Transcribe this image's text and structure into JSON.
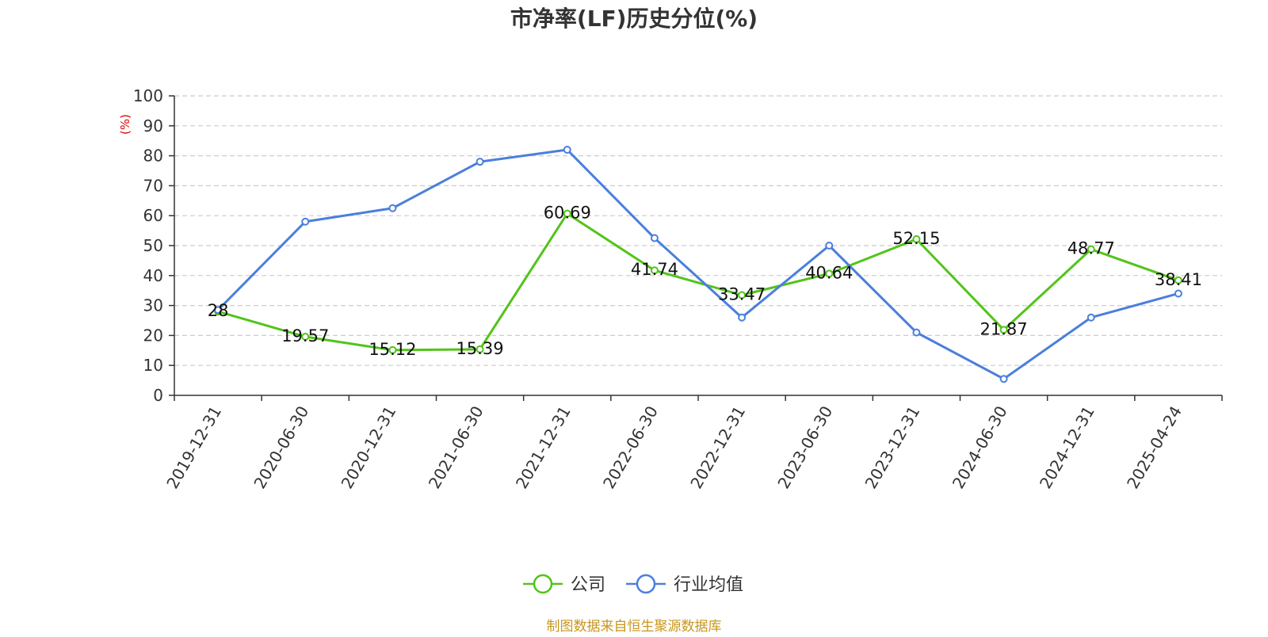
{
  "colors": {
    "company": "#52c41a",
    "industry": "#4a7fdc",
    "axis": "#333333",
    "grid": "#cccccc",
    "unit": "#e00000",
    "source": "#c8961e"
  },
  "chart_data": {
    "type": "line",
    "title": "市净率(LF)历史分位(%)",
    "ylabel": "(%)",
    "xlabel": "",
    "ylim": [
      0,
      100
    ],
    "yticks": [
      0,
      10,
      20,
      30,
      40,
      50,
      60,
      70,
      80,
      90,
      100
    ],
    "grid": true,
    "legend_position": "bottom-center",
    "categories": [
      "2019-12-31",
      "2020-06-30",
      "2020-12-31",
      "2021-06-30",
      "2021-12-31",
      "2022-06-30",
      "2022-12-31",
      "2023-06-30",
      "2023-12-31",
      "2024-06-30",
      "2024-12-31",
      "2025-04-24"
    ],
    "series": [
      {
        "name": "公司",
        "values": [
          28,
          19.57,
          15.12,
          15.39,
          60.69,
          41.74,
          33.47,
          40.64,
          52.15,
          21.87,
          48.77,
          38.41
        ],
        "data_labels": [
          "28",
          "19.57",
          "15.12",
          "15.39",
          "60.69",
          "41.74",
          "33.47",
          "40.64",
          "52.15",
          "21.87",
          "48.77",
          "38.41"
        ]
      },
      {
        "name": "行业均值",
        "values": [
          28.5,
          58,
          62.5,
          78,
          82,
          52.5,
          26,
          50,
          21,
          5.5,
          26,
          34
        ]
      }
    ],
    "source": "制图数据来自恒生聚源数据库"
  }
}
